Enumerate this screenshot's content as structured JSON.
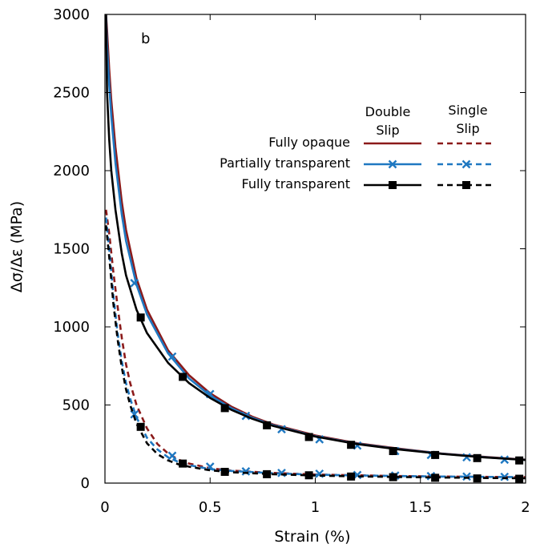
{
  "chart_data": {
    "type": "line",
    "panel_label": "b",
    "xlabel": "Strain (%)",
    "ylabel": "Δσ/Δε (MPa)",
    "xlim": [
      0,
      2
    ],
    "ylim": [
      0,
      3000
    ],
    "x_ticks": [
      {
        "value": 0,
        "label": "0"
      },
      {
        "value": 0.5,
        "label": "0.5"
      },
      {
        "value": 1,
        "label": "1"
      },
      {
        "value": 1.5,
        "label": "1.5"
      },
      {
        "value": 2,
        "label": "2"
      }
    ],
    "y_ticks": [
      {
        "value": 0,
        "label": "0"
      },
      {
        "value": 500,
        "label": "500"
      },
      {
        "value": 1000,
        "label": "1000"
      },
      {
        "value": 1500,
        "label": "1500"
      },
      {
        "value": 2000,
        "label": "2000"
      },
      {
        "value": 2500,
        "label": "2500"
      },
      {
        "value": 3000,
        "label": "3000"
      }
    ],
    "legend": {
      "placement": "top-right",
      "header_double": [
        "Double",
        "Slip"
      ],
      "header_single": [
        "Single",
        "Slip"
      ]
    },
    "series": [
      {
        "name": "Fully opaque",
        "slip": "Double Slip",
        "color": "#8b1a1a",
        "dash": "solid",
        "marker": "none",
        "x": [
          0.005,
          0.01,
          0.02,
          0.03,
          0.05,
          0.08,
          0.1,
          0.15,
          0.2,
          0.3,
          0.4,
          0.5,
          0.6,
          0.7,
          0.8,
          1.0,
          1.2,
          1.4,
          1.6,
          1.8,
          2.0
        ],
        "y": [
          3000,
          2900,
          2650,
          2450,
          2150,
          1800,
          1620,
          1310,
          1110,
          850,
          690,
          575,
          490,
          425,
          375,
          305,
          255,
          220,
          190,
          168,
          150
        ]
      },
      {
        "name": "Partially transparent",
        "slip": "Double Slip",
        "color": "#1f78c1",
        "dash": "solid",
        "marker": "cross",
        "x": [
          0.005,
          0.01,
          0.02,
          0.03,
          0.05,
          0.08,
          0.1,
          0.15,
          0.2,
          0.3,
          0.4,
          0.5,
          0.6,
          0.7,
          0.8,
          1.0,
          1.2,
          1.4,
          1.6,
          1.8,
          2.0
        ],
        "y": [
          3000,
          2800,
          2550,
          2350,
          2050,
          1720,
          1550,
          1270,
          1080,
          830,
          670,
          560,
          480,
          418,
          370,
          300,
          252,
          217,
          188,
          166,
          148
        ],
        "markers_x": [
          0.14,
          0.32,
          0.5,
          0.67,
          0.84,
          1.02,
          1.2,
          1.38,
          1.55,
          1.72,
          1.9
        ],
        "markers_y": [
          1280,
          810,
          570,
          430,
          345,
          280,
          240,
          205,
          180,
          165,
          150
        ]
      },
      {
        "name": "Fully transparent",
        "slip": "Double Slip",
        "color": "#000000",
        "dash": "solid",
        "marker": "square",
        "x": [
          0.005,
          0.01,
          0.02,
          0.03,
          0.05,
          0.08,
          0.1,
          0.15,
          0.2,
          0.3,
          0.4,
          0.5,
          0.6,
          0.7,
          0.8,
          1.0,
          1.2,
          1.4,
          1.6,
          1.8,
          2.0
        ],
        "y": [
          3000,
          2500,
          2200,
          2000,
          1750,
          1470,
          1330,
          1110,
          960,
          770,
          640,
          545,
          470,
          412,
          366,
          298,
          250,
          215,
          187,
          165,
          148
        ],
        "markers_x": [
          0.17,
          0.37,
          0.57,
          0.77,
          0.97,
          1.17,
          1.37,
          1.57,
          1.77,
          1.97
        ],
        "markers_y": [
          1060,
          680,
          480,
          370,
          295,
          245,
          205,
          180,
          160,
          145
        ]
      },
      {
        "name": "Fully opaque",
        "slip": "Single Slip",
        "color": "#8b1a1a",
        "dash": "dashed",
        "marker": "none",
        "x": [
          0.005,
          0.02,
          0.04,
          0.06,
          0.08,
          0.1,
          0.12,
          0.15,
          0.2,
          0.25,
          0.3,
          0.35,
          0.4,
          0.5,
          0.6,
          0.8,
          1.0,
          1.2,
          1.4,
          1.6,
          1.8,
          2.0
        ],
        "y": [
          1750,
          1600,
          1350,
          1130,
          930,
          760,
          640,
          500,
          350,
          250,
          190,
          150,
          125,
          95,
          80,
          65,
          55,
          50,
          45,
          42,
          40,
          38
        ]
      },
      {
        "name": "Partially transparent",
        "slip": "Single Slip",
        "color": "#1f78c1",
        "dash": "dashed",
        "marker": "cross",
        "x": [
          0.005,
          0.02,
          0.04,
          0.06,
          0.08,
          0.1,
          0.12,
          0.15,
          0.2,
          0.25,
          0.3,
          0.35,
          0.4,
          0.5,
          0.6,
          0.8,
          1.0,
          1.2,
          1.4,
          1.6,
          1.8,
          2.0
        ],
        "y": [
          1700,
          1500,
          1200,
          960,
          780,
          640,
          540,
          420,
          290,
          215,
          165,
          135,
          115,
          90,
          78,
          63,
          54,
          49,
          45,
          42,
          40,
          38
        ],
        "markers_x": [
          0.14,
          0.32,
          0.5,
          0.67,
          0.84,
          1.02,
          1.2,
          1.38,
          1.55,
          1.72,
          1.9
        ],
        "markers_y": [
          440,
          175,
          105,
          75,
          65,
          60,
          52,
          48,
          45,
          42,
          40
        ]
      },
      {
        "name": "Fully transparent",
        "slip": "Single Slip",
        "color": "#000000",
        "dash": "dashed",
        "marker": "square",
        "x": [
          0.005,
          0.02,
          0.04,
          0.06,
          0.08,
          0.1,
          0.12,
          0.15,
          0.2,
          0.25,
          0.3,
          0.35,
          0.4,
          0.5,
          0.6,
          0.8,
          1.0,
          1.2,
          1.4,
          1.6,
          1.8,
          2.0
        ],
        "y": [
          1650,
          1450,
          1150,
          920,
          740,
          600,
          500,
          380,
          255,
          185,
          145,
          120,
          105,
          82,
          70,
          57,
          48,
          43,
          39,
          36,
          33,
          31
        ],
        "markers_x": [
          0.17,
          0.37,
          0.57,
          0.77,
          0.97,
          1.17,
          1.37,
          1.57,
          1.77,
          1.97
        ],
        "markers_y": [
          360,
          125,
          72,
          57,
          50,
          42,
          38,
          34,
          30,
          28
        ]
      }
    ]
  }
}
